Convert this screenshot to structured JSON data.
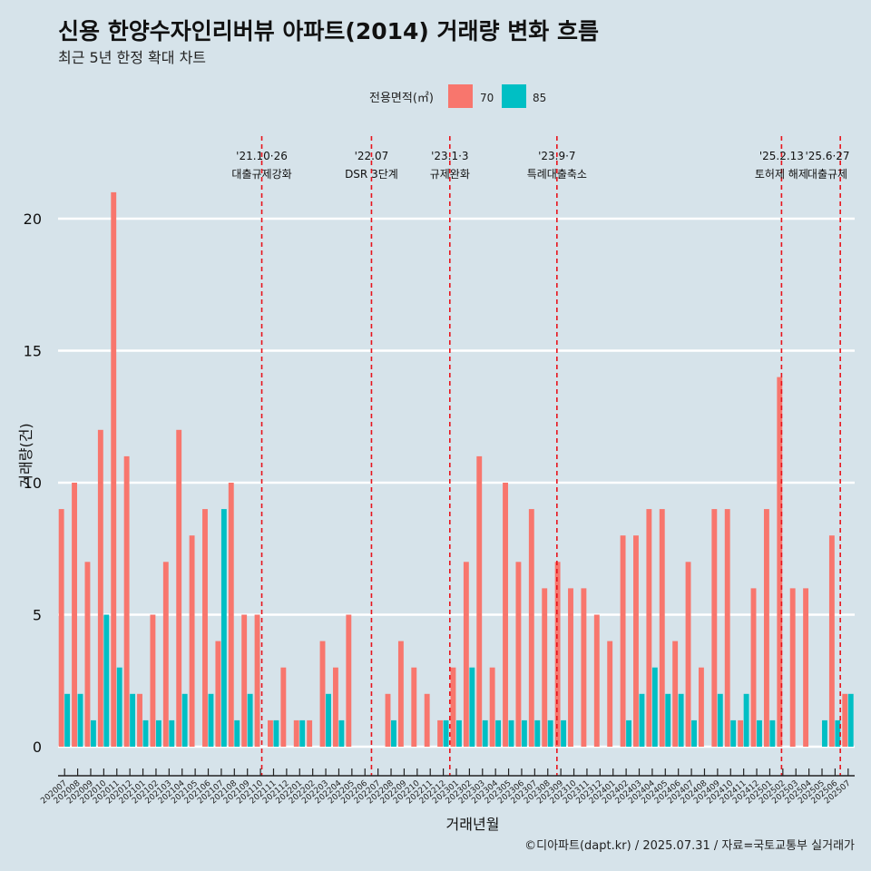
{
  "title": "신용 한양수자인리버뷰 아파트(2014) 거래량 변화 흐름",
  "subtitle": "최근 5년 한정 확대 차트",
  "caption": "©디아파트(dapt.kr) / 2025.07.31 / 자료=국토교통부 실거래가",
  "legend": {
    "title": "전용면적(㎡)",
    "items": [
      {
        "label": "70",
        "color": "#f8766d"
      },
      {
        "label": "85",
        "color": "#00bfc4"
      }
    ]
  },
  "chart_data": {
    "type": "bar",
    "xlabel": "거래년월",
    "ylabel": "거래량(건)",
    "ylim": [
      0,
      22
    ],
    "yticks": [
      0,
      5,
      10,
      15,
      20
    ],
    "grid": true,
    "legend_position": "top",
    "categories": [
      "202007",
      "202008",
      "202009",
      "202010",
      "202011",
      "202012",
      "202101",
      "202102",
      "202103",
      "202104",
      "202105",
      "202106",
      "202107",
      "202108",
      "202109",
      "202110",
      "202111",
      "202112",
      "202201",
      "202202",
      "202203",
      "202204",
      "202205",
      "202206",
      "202207",
      "202208",
      "202209",
      "202210",
      "202211",
      "202212",
      "202301",
      "202302",
      "202303",
      "202304",
      "202305",
      "202306",
      "202307",
      "202308",
      "202309",
      "202310",
      "202311",
      "202312",
      "202401",
      "202402",
      "202403",
      "202404",
      "202405",
      "202406",
      "202407",
      "202408",
      "202409",
      "202410",
      "202411",
      "202412",
      "202501",
      "202502",
      "202503",
      "202504",
      "202505",
      "202506",
      "202507"
    ],
    "series": [
      {
        "name": "70",
        "color": "#f8766d",
        "values": [
          9,
          10,
          7,
          12,
          21,
          11,
          2,
          5,
          7,
          12,
          8,
          9,
          4,
          10,
          5,
          5,
          1,
          3,
          1,
          1,
          4,
          3,
          5,
          0,
          0,
          2,
          4,
          3,
          2,
          1,
          3,
          7,
          11,
          3,
          10,
          7,
          9,
          6,
          7,
          6,
          6,
          5,
          4,
          8,
          8,
          9,
          9,
          4,
          7,
          3,
          9,
          9,
          1,
          6,
          9,
          14,
          6,
          6,
          0,
          8,
          2
        ]
      },
      {
        "name": "85",
        "color": "#00bfc4",
        "values": [
          2,
          2,
          1,
          5,
          3,
          2,
          1,
          1,
          1,
          2,
          0,
          2,
          9,
          1,
          2,
          0,
          1,
          0,
          1,
          0,
          2,
          1,
          0,
          0,
          0,
          1,
          0,
          0,
          0,
          1,
          1,
          3,
          1,
          1,
          1,
          1,
          1,
          1,
          1,
          0,
          0,
          0,
          0,
          1,
          2,
          3,
          2,
          2,
          1,
          0,
          2,
          1,
          2,
          1,
          1,
          0,
          0,
          0,
          1,
          1,
          2
        ]
      }
    ],
    "events": [
      {
        "date": "'21.10·26",
        "text": "대출규제강화",
        "month": "202110",
        "offset": 0.6
      },
      {
        "date": "'22.07",
        "text": "DSR 3단계",
        "month": "202207",
        "offset": 0.0
      },
      {
        "date": "'23.1·3",
        "text": "규제완화",
        "month": "202301",
        "offset": 0.0
      },
      {
        "date": "'23.9·7",
        "text": "특례대출축소",
        "month": "202309",
        "offset": 0.2
      },
      {
        "date": "'25.2.13",
        "text": "토허제 해제",
        "month": "202502",
        "offset": 0.4
      },
      {
        "date": "'25.6·27",
        "text": "대출규제",
        "month": "202506",
        "offset": 0.9
      }
    ]
  }
}
